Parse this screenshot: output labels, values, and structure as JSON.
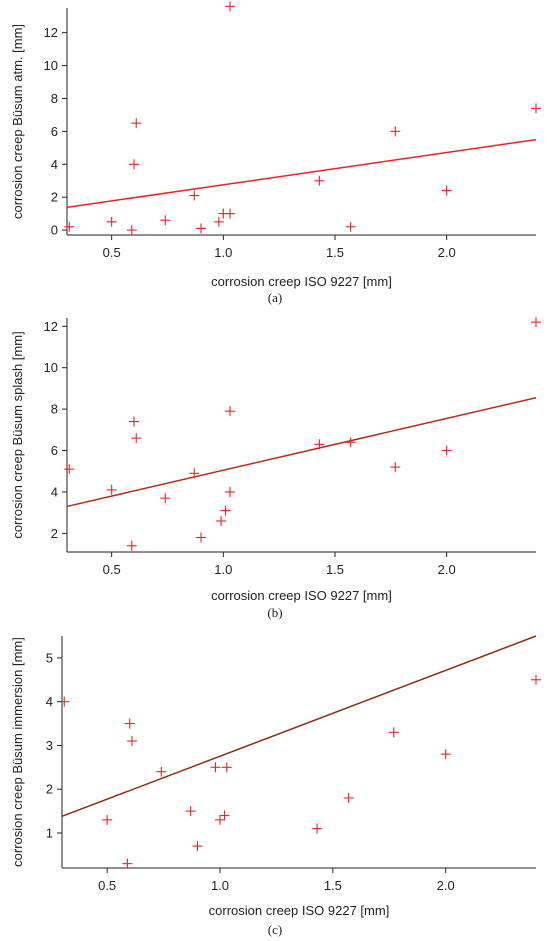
{
  "chart_data": [
    {
      "type": "scatter",
      "panel_label": "(a)",
      "xlabel": "corrosion creep ISO 9227 [mm]",
      "ylabel": "corrosion creep Büsum atm. [mm]",
      "xlim": [
        0.3,
        2.4
      ],
      "ylim": [
        -0.3,
        13.5
      ],
      "xticks": [
        0.5,
        1.0,
        1.5,
        2.0
      ],
      "xtick_labels": [
        "0.5",
        "1.0",
        "1.5",
        "2.0"
      ],
      "yticks": [
        0,
        2,
        4,
        6,
        8,
        10,
        12
      ],
      "ytick_labels": [
        "0",
        "2",
        "4",
        "6",
        "8",
        "10",
        "12"
      ],
      "marker_color": "#e8232a",
      "line_color": "#e8232a",
      "points": [
        {
          "x": 0.31,
          "y": 0.2
        },
        {
          "x": 0.5,
          "y": 0.5
        },
        {
          "x": 0.59,
          "y": 0.0
        },
        {
          "x": 0.6,
          "y": 4.0
        },
        {
          "x": 0.61,
          "y": 6.5
        },
        {
          "x": 0.74,
          "y": 0.6
        },
        {
          "x": 0.87,
          "y": 2.1
        },
        {
          "x": 0.9,
          "y": 0.1
        },
        {
          "x": 0.98,
          "y": 0.5
        },
        {
          "x": 1.0,
          "y": 1.0
        },
        {
          "x": 1.03,
          "y": 1.0
        },
        {
          "x": 1.03,
          "y": 13.6
        },
        {
          "x": 1.43,
          "y": 3.0
        },
        {
          "x": 1.57,
          "y": 0.2
        },
        {
          "x": 1.77,
          "y": 6.0
        },
        {
          "x": 2.0,
          "y": 2.4
        },
        {
          "x": 2.4,
          "y": 7.4
        }
      ],
      "fit_line": {
        "x": [
          0.3,
          2.4
        ],
        "y": [
          1.38,
          5.5
        ]
      }
    },
    {
      "type": "scatter",
      "panel_label": "(b)",
      "xlabel": "corrosion creep ISO 9227 [mm]",
      "ylabel": "corrosion creep Büsum splash [mm]",
      "xlim": [
        0.3,
        2.4
      ],
      "ylim": [
        1.1,
        12.4
      ],
      "xticks": [
        0.5,
        1.0,
        1.5,
        2.0
      ],
      "xtick_labels": [
        "0.5",
        "1.0",
        "1.5",
        "2.0"
      ],
      "yticks": [
        2,
        4,
        6,
        8,
        10,
        12
      ],
      "ytick_labels": [
        "2",
        "4",
        "6",
        "8",
        "10",
        "12"
      ],
      "marker_color": "#e8232a",
      "line_color": "#b52a1a",
      "points": [
        {
          "x": 0.31,
          "y": 5.1
        },
        {
          "x": 0.5,
          "y": 4.1
        },
        {
          "x": 0.59,
          "y": 1.4
        },
        {
          "x": 0.6,
          "y": 7.4
        },
        {
          "x": 0.61,
          "y": 6.6
        },
        {
          "x": 0.74,
          "y": 3.7
        },
        {
          "x": 0.87,
          "y": 4.9
        },
        {
          "x": 0.9,
          "y": 1.8
        },
        {
          "x": 0.99,
          "y": 2.6
        },
        {
          "x": 1.01,
          "y": 3.1
        },
        {
          "x": 1.03,
          "y": 7.9
        },
        {
          "x": 1.03,
          "y": 4.0
        },
        {
          "x": 1.43,
          "y": 6.3
        },
        {
          "x": 1.57,
          "y": 6.4
        },
        {
          "x": 1.77,
          "y": 5.2
        },
        {
          "x": 2.0,
          "y": 6.0
        },
        {
          "x": 2.4,
          "y": 12.2
        }
      ],
      "fit_line": {
        "x": [
          0.3,
          2.4
        ],
        "y": [
          3.3,
          8.55
        ]
      }
    },
    {
      "type": "scatter",
      "panel_label": "(c)",
      "xlabel": "corrosion creep ISO 9227 [mm]",
      "ylabel": "corrosion creep Büsum immersion [mm]",
      "xlim": [
        0.3,
        2.4
      ],
      "ylim": [
        0.2,
        5.5
      ],
      "xticks": [
        0.5,
        1.0,
        1.5,
        2.0
      ],
      "xtick_labels": [
        "0.5",
        "1.0",
        "1.5",
        "2.0"
      ],
      "yticks": [
        1,
        2,
        3,
        4,
        5
      ],
      "ytick_labels": [
        "1",
        "2",
        "3",
        "4",
        "5"
      ],
      "marker_color": "#e8232a",
      "line_color": "#8b2e12",
      "points": [
        {
          "x": 0.31,
          "y": 4.0
        },
        {
          "x": 0.5,
          "y": 1.3
        },
        {
          "x": 0.59,
          "y": 0.3
        },
        {
          "x": 0.6,
          "y": 3.5
        },
        {
          "x": 0.61,
          "y": 3.1
        },
        {
          "x": 0.74,
          "y": 2.4
        },
        {
          "x": 0.87,
          "y": 1.5
        },
        {
          "x": 0.9,
          "y": 0.7
        },
        {
          "x": 0.98,
          "y": 2.5
        },
        {
          "x": 1.0,
          "y": 1.3
        },
        {
          "x": 1.02,
          "y": 1.4
        },
        {
          "x": 1.03,
          "y": 2.5
        },
        {
          "x": 1.43,
          "y": 1.1
        },
        {
          "x": 1.57,
          "y": 1.8
        },
        {
          "x": 1.77,
          "y": 3.3
        },
        {
          "x": 2.0,
          "y": 2.8
        },
        {
          "x": 2.4,
          "y": 4.5
        }
      ],
      "fit_line": {
        "x": [
          0.3,
          2.4
        ],
        "y": [
          1.38,
          5.5
        ]
      }
    }
  ]
}
